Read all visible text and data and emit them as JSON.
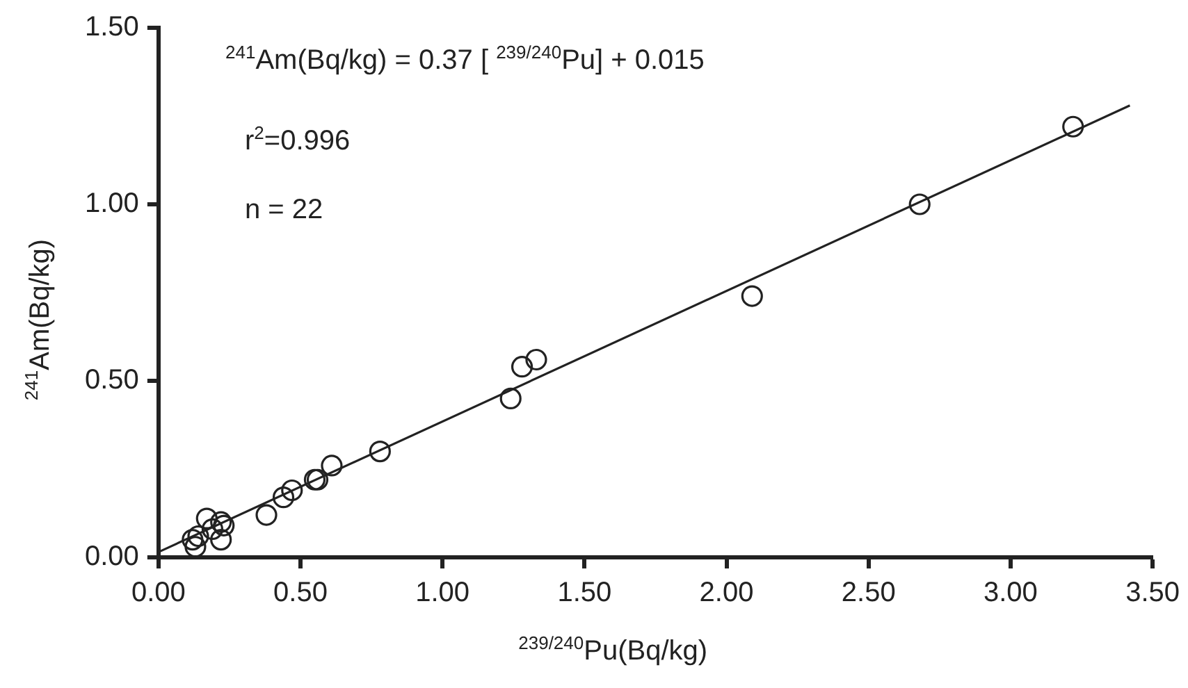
{
  "chart_data": {
    "type": "scatter",
    "xlabel": "$^{239/240}$Pu(Bq/kg)",
    "ylabel": "$^{241}$Am(Bq/kg)",
    "annotations": [
      "$^{241}$Am(Bq/kg) = 0.37 [ $^{239/240}$Pu] + 0.015",
      "r$^{2}$=0.996",
      "n = 22"
    ],
    "xlim": [
      0,
      3.5
    ],
    "ylim": [
      0,
      1.5
    ],
    "xticks": [
      {
        "value": 0,
        "label": "0.00"
      },
      {
        "value": 0.5,
        "label": "0.50"
      },
      {
        "value": 1,
        "label": "1.00"
      },
      {
        "value": 1.5,
        "label": "1.50"
      },
      {
        "value": 2,
        "label": "2.00"
      },
      {
        "value": 2.5,
        "label": "2.50"
      },
      {
        "value": 3,
        "label": "3.00"
      },
      {
        "value": 3.5,
        "label": "3.50"
      }
    ],
    "yticks": [
      {
        "value": 0,
        "label": "0.00"
      },
      {
        "value": 0.5,
        "label": "0.50"
      },
      {
        "value": 1,
        "label": "1.00"
      },
      {
        "value": 1.5,
        "label": "1.50"
      }
    ],
    "grid": false,
    "legend": false,
    "marker": "circle",
    "series": [
      {
        "color": "#222222",
        "x": [
          0.12,
          0.13,
          0.14,
          0.17,
          0.19,
          0.22,
          0.22,
          0.23,
          0.38,
          0.44,
          0.47,
          0.55,
          0.56,
          0.61,
          0.78,
          1.24,
          1.28,
          1.33,
          2.09,
          2.68,
          3.22
        ],
        "values": [
          0.05,
          0.03,
          0.06,
          0.11,
          0.08,
          0.1,
          0.05,
          0.09,
          0.12,
          0.17,
          0.19,
          0.22,
          0.22,
          0.26,
          0.3,
          0.45,
          0.54,
          0.56,
          0.74,
          1.0,
          1.22
        ]
      },
      {
        "type": "line",
        "color": "#222222",
        "marker": "none",
        "line_style": "solid",
        "x": [
          0,
          3.42
        ],
        "values": [
          0.015,
          1.28
        ]
      }
    ]
  }
}
